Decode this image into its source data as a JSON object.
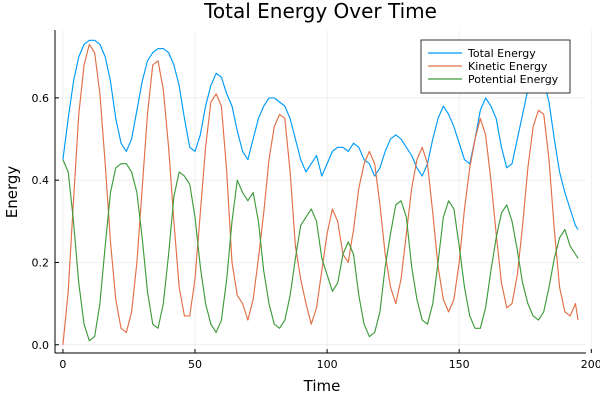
{
  "chart_data": {
    "type": "line",
    "title": "Total Energy Over Time",
    "xlabel": "Time",
    "ylabel": "Energy",
    "xlim": [
      -3,
      198
    ],
    "ylim": [
      -0.02,
      0.765
    ],
    "xticks": [
      0,
      50,
      100,
      150,
      200
    ],
    "yticks": [
      0.0,
      0.2,
      0.4,
      0.6
    ],
    "xtick_labels": [
      "0",
      "50",
      "100",
      "150",
      "200"
    ],
    "ytick_labels": [
      "0.0",
      "0.2",
      "0.4",
      "0.6"
    ],
    "grid": true,
    "legend_position": "top-right",
    "series": [
      {
        "name": "Total Energy",
        "color": "#009AFA",
        "x": [
          0,
          2,
          4,
          6,
          8,
          10,
          12,
          14,
          16,
          18,
          20,
          22,
          24,
          26,
          28,
          30,
          32,
          34,
          36,
          38,
          40,
          42,
          44,
          46,
          48,
          50,
          52,
          54,
          56,
          58,
          60,
          62,
          64,
          66,
          68,
          70,
          72,
          74,
          76,
          78,
          80,
          82,
          84,
          86,
          88,
          90,
          92,
          94,
          96,
          98,
          100,
          102,
          104,
          106,
          108,
          110,
          112,
          114,
          116,
          118,
          120,
          122,
          124,
          126,
          128,
          130,
          132,
          134,
          136,
          138,
          140,
          142,
          144,
          146,
          148,
          150,
          152,
          154,
          156,
          158,
          160,
          162,
          164,
          166,
          168,
          170,
          172,
          174,
          176,
          178,
          180,
          182,
          184,
          186,
          188,
          190,
          192,
          194,
          195
        ],
        "y": [
          0.45,
          0.55,
          0.64,
          0.7,
          0.73,
          0.74,
          0.74,
          0.73,
          0.7,
          0.64,
          0.55,
          0.49,
          0.47,
          0.5,
          0.57,
          0.64,
          0.69,
          0.71,
          0.72,
          0.72,
          0.71,
          0.68,
          0.63,
          0.55,
          0.48,
          0.47,
          0.51,
          0.58,
          0.63,
          0.66,
          0.65,
          0.61,
          0.58,
          0.52,
          0.47,
          0.45,
          0.5,
          0.55,
          0.58,
          0.6,
          0.6,
          0.59,
          0.58,
          0.55,
          0.5,
          0.45,
          0.42,
          0.44,
          0.46,
          0.41,
          0.44,
          0.47,
          0.48,
          0.48,
          0.47,
          0.49,
          0.48,
          0.45,
          0.44,
          0.41,
          0.43,
          0.47,
          0.5,
          0.51,
          0.5,
          0.48,
          0.46,
          0.43,
          0.41,
          0.44,
          0.5,
          0.55,
          0.58,
          0.56,
          0.53,
          0.49,
          0.45,
          0.44,
          0.5,
          0.57,
          0.6,
          0.58,
          0.55,
          0.48,
          0.43,
          0.44,
          0.5,
          0.56,
          0.62,
          0.64,
          0.65,
          0.64,
          0.59,
          0.5,
          0.42,
          0.37,
          0.33,
          0.29,
          0.28
        ]
      },
      {
        "name": "Kinetic Energy",
        "color": "#E26F46",
        "x": [
          0,
          2,
          4,
          6,
          8,
          10,
          12,
          14,
          16,
          18,
          20,
          22,
          24,
          26,
          28,
          30,
          32,
          34,
          36,
          38,
          40,
          42,
          44,
          46,
          48,
          50,
          52,
          54,
          56,
          58,
          60,
          62,
          64,
          66,
          68,
          70,
          72,
          74,
          76,
          78,
          80,
          82,
          84,
          86,
          88,
          90,
          92,
          94,
          96,
          98,
          100,
          102,
          104,
          106,
          108,
          110,
          112,
          114,
          116,
          118,
          120,
          122,
          124,
          126,
          128,
          130,
          132,
          134,
          136,
          138,
          140,
          142,
          144,
          146,
          148,
          150,
          152,
          154,
          156,
          158,
          160,
          162,
          164,
          166,
          168,
          170,
          172,
          174,
          176,
          178,
          180,
          182,
          184,
          186,
          188,
          190,
          192,
          194,
          195
        ],
        "y": [
          0.0,
          0.13,
          0.35,
          0.56,
          0.68,
          0.73,
          0.71,
          0.61,
          0.44,
          0.25,
          0.11,
          0.04,
          0.03,
          0.08,
          0.2,
          0.38,
          0.56,
          0.68,
          0.69,
          0.62,
          0.48,
          0.3,
          0.14,
          0.07,
          0.07,
          0.16,
          0.32,
          0.48,
          0.59,
          0.61,
          0.58,
          0.42,
          0.2,
          0.12,
          0.1,
          0.06,
          0.11,
          0.21,
          0.32,
          0.45,
          0.53,
          0.56,
          0.55,
          0.42,
          0.24,
          0.16,
          0.1,
          0.05,
          0.09,
          0.18,
          0.27,
          0.33,
          0.3,
          0.22,
          0.2,
          0.28,
          0.38,
          0.44,
          0.47,
          0.44,
          0.34,
          0.22,
          0.14,
          0.1,
          0.16,
          0.27,
          0.38,
          0.45,
          0.48,
          0.44,
          0.32,
          0.19,
          0.11,
          0.08,
          0.11,
          0.2,
          0.33,
          0.43,
          0.5,
          0.55,
          0.51,
          0.4,
          0.27,
          0.15,
          0.09,
          0.1,
          0.17,
          0.29,
          0.43,
          0.53,
          0.57,
          0.56,
          0.45,
          0.28,
          0.14,
          0.08,
          0.07,
          0.1,
          0.06
        ]
      },
      {
        "name": "Potential Energy",
        "color": "#3E9B3B",
        "x": [
          0,
          2,
          4,
          6,
          8,
          10,
          12,
          14,
          16,
          18,
          20,
          22,
          24,
          26,
          28,
          30,
          32,
          34,
          36,
          38,
          40,
          42,
          44,
          46,
          48,
          50,
          52,
          54,
          56,
          58,
          60,
          62,
          64,
          66,
          68,
          70,
          72,
          74,
          76,
          78,
          80,
          82,
          84,
          86,
          88,
          90,
          92,
          94,
          96,
          98,
          100,
          102,
          104,
          106,
          108,
          110,
          112,
          114,
          116,
          118,
          120,
          122,
          124,
          126,
          128,
          130,
          132,
          134,
          136,
          138,
          140,
          142,
          144,
          146,
          148,
          150,
          152,
          154,
          156,
          158,
          160,
          162,
          164,
          166,
          168,
          170,
          172,
          174,
          176,
          178,
          180,
          182,
          184,
          186,
          188,
          190,
          192,
          194,
          195
        ],
        "y": [
          0.45,
          0.42,
          0.3,
          0.15,
          0.05,
          0.01,
          0.02,
          0.1,
          0.24,
          0.37,
          0.43,
          0.44,
          0.44,
          0.42,
          0.37,
          0.26,
          0.13,
          0.05,
          0.04,
          0.1,
          0.22,
          0.36,
          0.42,
          0.41,
          0.39,
          0.31,
          0.19,
          0.1,
          0.05,
          0.03,
          0.06,
          0.16,
          0.3,
          0.4,
          0.37,
          0.35,
          0.37,
          0.3,
          0.18,
          0.1,
          0.05,
          0.04,
          0.06,
          0.12,
          0.21,
          0.29,
          0.31,
          0.33,
          0.3,
          0.21,
          0.17,
          0.13,
          0.15,
          0.22,
          0.25,
          0.22,
          0.12,
          0.05,
          0.02,
          0.03,
          0.08,
          0.19,
          0.27,
          0.34,
          0.35,
          0.31,
          0.19,
          0.11,
          0.06,
          0.05,
          0.1,
          0.2,
          0.31,
          0.35,
          0.33,
          0.24,
          0.14,
          0.07,
          0.04,
          0.04,
          0.09,
          0.18,
          0.26,
          0.32,
          0.34,
          0.3,
          0.23,
          0.15,
          0.1,
          0.07,
          0.06,
          0.08,
          0.14,
          0.21,
          0.26,
          0.28,
          0.24,
          0.22,
          0.21
        ]
      }
    ]
  }
}
